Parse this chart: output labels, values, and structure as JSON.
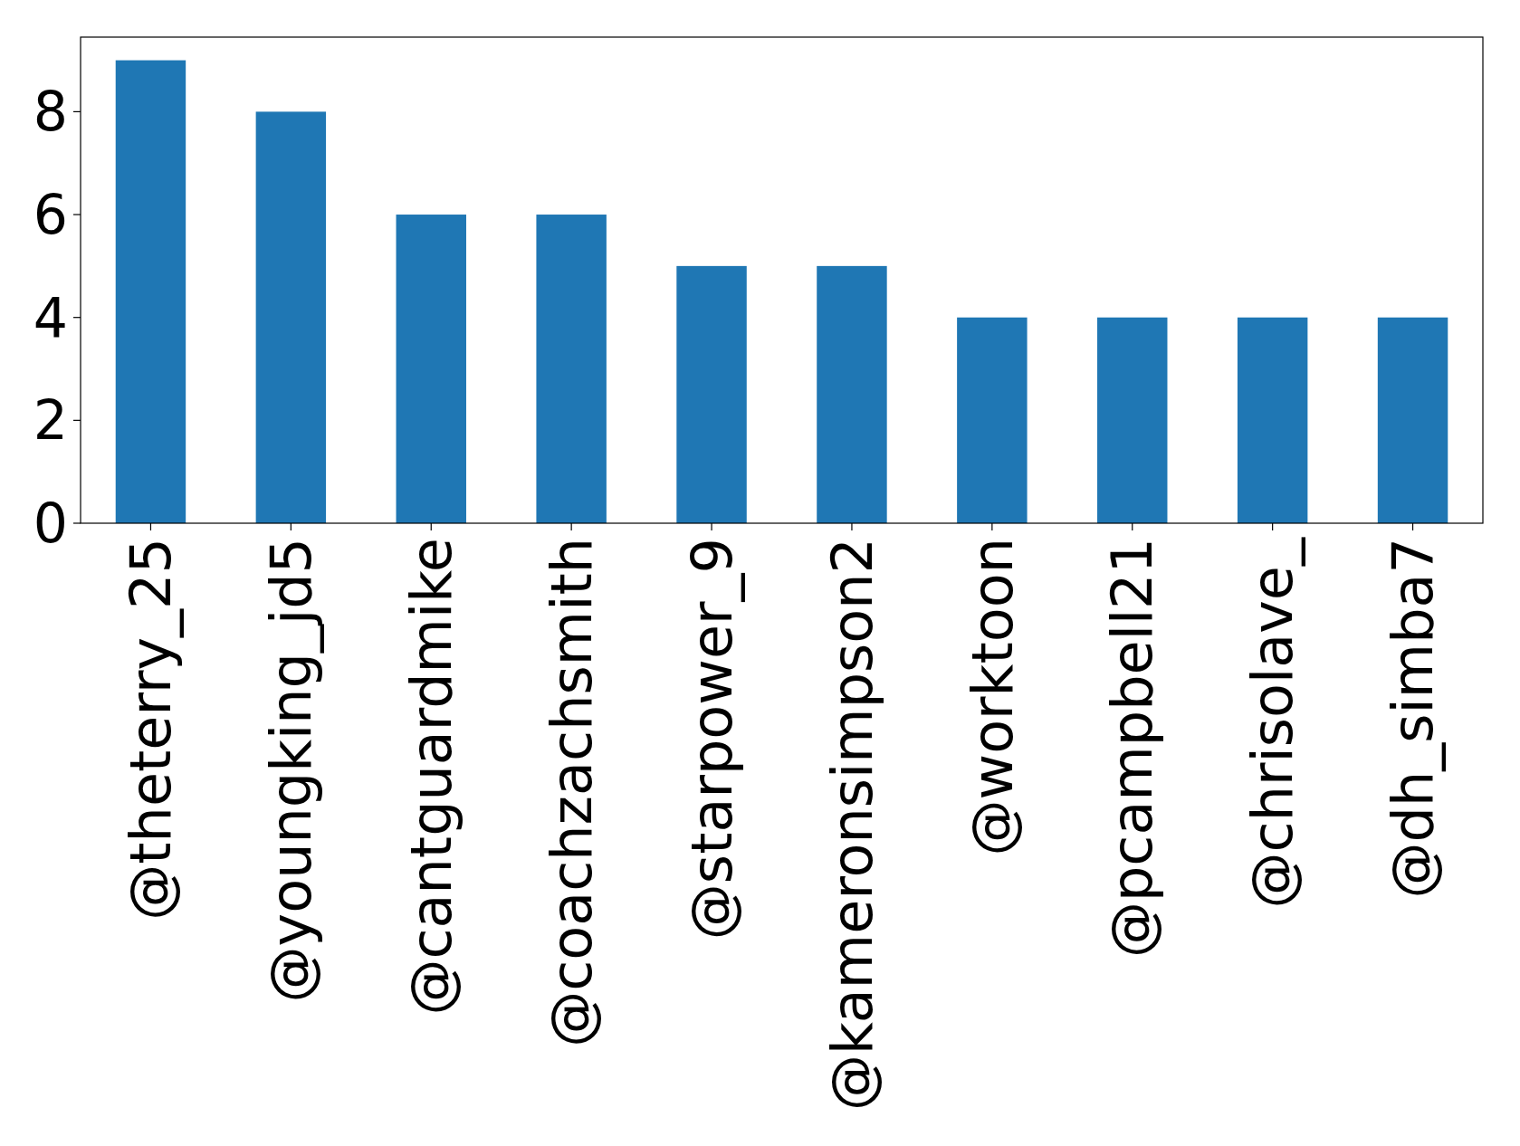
{
  "chart_data": {
    "type": "bar",
    "categories": [
      "@theterry_25",
      "@youngking_jd5",
      "@cantguardmike",
      "@coachzachsmith",
      "@starpower_9",
      "@kameronsimpson2",
      "@worktoon",
      "@pcampbell21",
      "@chrisolave_",
      "@dh_simba7"
    ],
    "values": [
      9,
      8,
      6,
      6,
      5,
      5,
      4,
      4,
      4,
      4
    ],
    "color": "#1f77b4",
    "ylim": [
      0,
      9.45
    ],
    "yticks": [
      0,
      2,
      4,
      6,
      8
    ],
    "grid": false
  }
}
